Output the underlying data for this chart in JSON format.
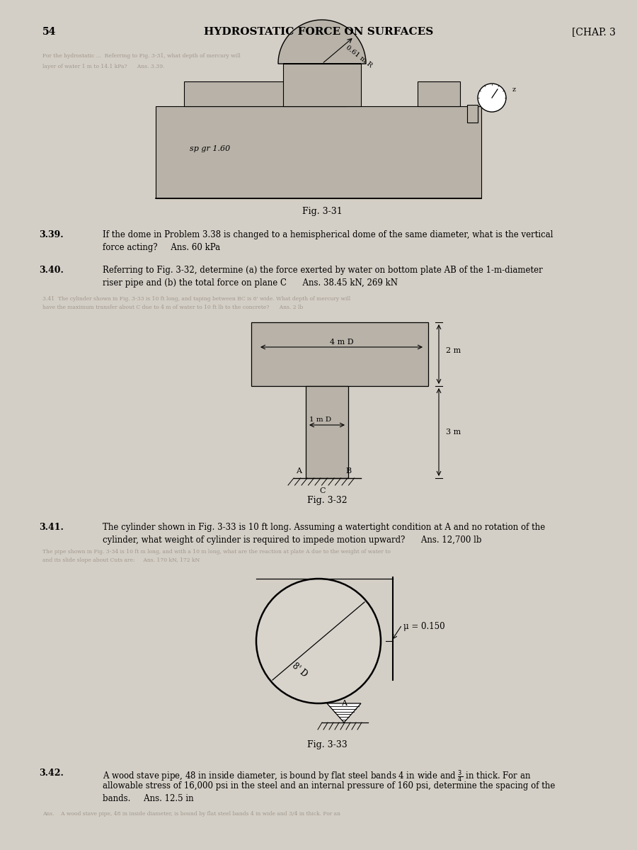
{
  "page_num": "54",
  "chapter": "[CHAP. 3",
  "header": "HYDROSTATIC FORCE ON SURFACES",
  "page_bg": "#d4cfc6",
  "fig_bg": "#b8b2a8",
  "problems": [
    {
      "num": "3.39.",
      "line1": "If the dome in Problem 3.38 is changed to a hemispherical dome of the same diameter, what is the vertical",
      "line2": "force acting?     Ans. 60 kPa"
    },
    {
      "num": "3.40.",
      "line1": "Referring to Fig. 3-32, determine (a) the force exerted by water on bottom plate AB of the 1-m-diameter",
      "line2": "riser pipe and (b) the total force on plane C      Ans. 38.45 kN, 269 kN"
    },
    {
      "num": "3.41.",
      "line1": "The cylinder shown in Fig. 3-33 is 10 ft long. Assuming a watertight condition at A and no rotation of the",
      "line2": "cylinder, what weight of cylinder is required to impede motion upward?      Ans. 12,700 lb"
    },
    {
      "num": "3.42.",
      "line1": "A wood stave pipe, 48 in inside diameter, is bound by flat steel bands 4 in wide and $\\frac{3}{4}$ in thick. For an",
      "line2": "allowable stress of 16,000 psi in the steel and an internal pressure of 160 psi, determine the spacing of the",
      "line3": "bands.     Ans. 12.5 in"
    }
  ],
  "fig331_label": "Fig. 3-31",
  "fig332_label": "Fig. 3-32",
  "fig333_label": "Fig. 3-33",
  "sp_gr": "sp gr 1.60",
  "radius_label": "0.61 m R",
  "dim_4m": "4 m D",
  "dim_1m": "1 m D",
  "dim_2m": "2 m",
  "dim_3m": "3 m",
  "mu_label": "μ = 0.150",
  "diam_8ft": "8' D"
}
